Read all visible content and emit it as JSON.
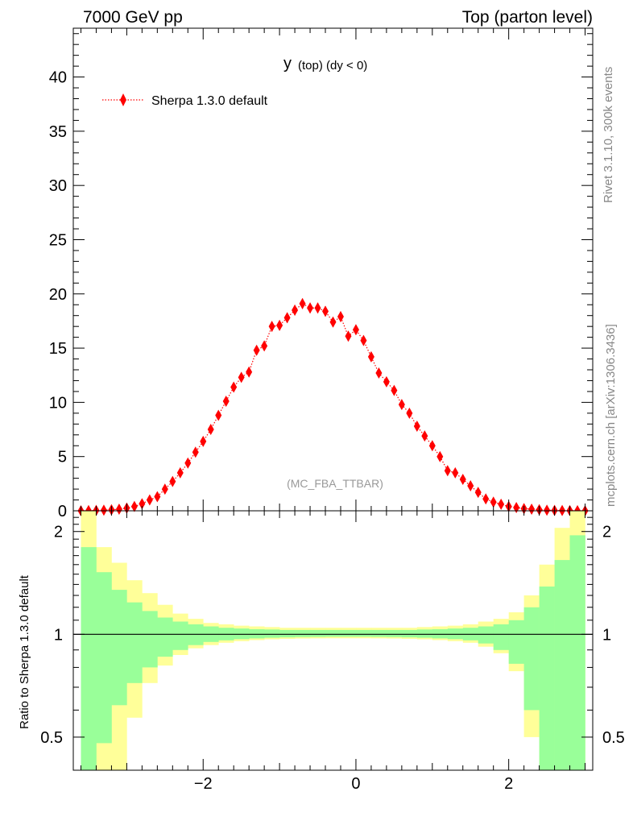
{
  "header": {
    "left": "7000 GeV pp",
    "right": "Top (parton level)"
  },
  "side": {
    "rivet": "Rivet 3.1.10,  300k events",
    "site": "mcplots.cern.ch [arXiv:1306.3436]"
  },
  "chart_data": [
    {
      "type": "line",
      "title": "y (top) (dy < 0)",
      "title_main": "y",
      "title_sub": "(top) (dy < 0)",
      "watermark": "(MC_FBA_TTBAR)",
      "xlim": [
        -3.7,
        3.1
      ],
      "ylim": [
        0,
        44.5
      ],
      "x_ticks": [
        -2,
        0,
        2
      ],
      "y_ticks": [
        0,
        5,
        10,
        15,
        20,
        25,
        30,
        35,
        40
      ],
      "x_tick_labels": [
        "−2",
        "0",
        "2"
      ],
      "y_tick_labels": [
        "0",
        "5",
        "10",
        "15",
        "20",
        "25",
        "30",
        "35",
        "40"
      ],
      "legend_placement": "top-left",
      "series": [
        {
          "name": "Sherpa 1.3.0 default",
          "color": "#ff0000",
          "marker": "diamond",
          "x": [
            -3.6,
            -3.5,
            -3.4,
            -3.3,
            -3.2,
            -3.1,
            -3.0,
            -2.9,
            -2.8,
            -2.7,
            -2.6,
            -2.5,
            -2.4,
            -2.3,
            -2.2,
            -2.1,
            -2.0,
            -1.9,
            -1.8,
            -1.7,
            -1.6,
            -1.5,
            -1.4,
            -1.3,
            -1.2,
            -1.1,
            -1.0,
            -0.9,
            -0.8,
            -0.7,
            -0.6,
            -0.5,
            -0.4,
            -0.3,
            -0.2,
            -0.1,
            0.0,
            0.1,
            0.2,
            0.3,
            0.4,
            0.5,
            0.6,
            0.7,
            0.8,
            0.9,
            1.0,
            1.1,
            1.2,
            1.3,
            1.4,
            1.5,
            1.6,
            1.7,
            1.8,
            1.9,
            2.0,
            2.1,
            2.2,
            2.3,
            2.4,
            2.5,
            2.6,
            2.7,
            2.8,
            2.9,
            3.0
          ],
          "y": [
            0.0,
            0.02,
            0.04,
            0.06,
            0.09,
            0.15,
            0.25,
            0.4,
            0.65,
            1.0,
            1.3,
            2.0,
            2.7,
            3.5,
            4.4,
            5.4,
            6.4,
            7.5,
            8.8,
            10.1,
            11.4,
            12.3,
            12.8,
            14.8,
            15.2,
            17.0,
            17.1,
            17.8,
            18.5,
            19.1,
            18.7,
            18.7,
            18.4,
            17.4,
            17.9,
            16.1,
            16.7,
            15.7,
            14.2,
            12.7,
            11.9,
            11.1,
            9.8,
            9.0,
            7.8,
            6.9,
            6.0,
            5.0,
            3.7,
            3.5,
            2.9,
            2.3,
            1.7,
            1.1,
            0.8,
            0.6,
            0.4,
            0.3,
            0.2,
            0.15,
            0.1,
            0.06,
            0.04,
            0.03,
            0.02,
            0.01,
            0.0
          ],
          "yerr": [
            0.05,
            0.05,
            0.05,
            0.05,
            0.05,
            0.06,
            0.08,
            0.1,
            0.12,
            0.15,
            0.18,
            0.2,
            0.22,
            0.25,
            0.27,
            0.29,
            0.31,
            0.33,
            0.35,
            0.37,
            0.39,
            0.4,
            0.41,
            0.43,
            0.44,
            0.46,
            0.46,
            0.47,
            0.48,
            0.48,
            0.48,
            0.48,
            0.47,
            0.46,
            0.47,
            0.45,
            0.46,
            0.44,
            0.42,
            0.4,
            0.39,
            0.37,
            0.35,
            0.34,
            0.31,
            0.29,
            0.27,
            0.25,
            0.22,
            0.21,
            0.19,
            0.17,
            0.15,
            0.12,
            0.1,
            0.09,
            0.08,
            0.07,
            0.06,
            0.05,
            0.05,
            0.05,
            0.05,
            0.05,
            0.05,
            0.05,
            0.05
          ]
        }
      ]
    },
    {
      "type": "area",
      "ylabel": "Ratio to Sherpa 1.3.0 default",
      "xlim": [
        -3.7,
        3.1
      ],
      "ylim": [
        0.4,
        2.3
      ],
      "y_scale": "log",
      "x_ticks": [
        -2,
        0,
        2
      ],
      "x_tick_labels": [
        "−2",
        "0",
        "2"
      ],
      "y_ticks": [
        0.5,
        1,
        2
      ],
      "y_tick_labels": [
        "0.5",
        "1",
        "2"
      ],
      "reference_line": 1,
      "bin_edges": [
        -3.6,
        -3.4,
        -3.2,
        -3.0,
        -2.8,
        -2.6,
        -2.4,
        -2.2,
        -2.0,
        -1.8,
        -1.6,
        -1.4,
        -1.2,
        -1.0,
        -0.8,
        -0.6,
        -0.4,
        -0.2,
        0.0,
        0.2,
        0.4,
        0.6,
        0.8,
        1.0,
        1.2,
        1.4,
        1.6,
        1.8,
        2.0,
        2.2,
        2.4,
        2.6,
        2.8,
        3.0
      ],
      "series": [
        {
          "name": "",
          "color": "#ffff99",
          "up": [
            2.4,
            1.8,
            1.62,
            1.44,
            1.32,
            1.22,
            1.15,
            1.11,
            1.08,
            1.07,
            1.06,
            1.055,
            1.05,
            1.045,
            1.045,
            1.045,
            1.045,
            1.045,
            1.045,
            1.045,
            1.045,
            1.045,
            1.05,
            1.055,
            1.06,
            1.07,
            1.09,
            1.11,
            1.16,
            1.3,
            1.6,
            2.05,
            2.35
          ],
          "down": [
            0.3,
            0.3,
            0.39,
            0.57,
            0.72,
            0.81,
            0.87,
            0.91,
            0.93,
            0.945,
            0.955,
            0.962,
            0.967,
            0.97,
            0.972,
            0.973,
            0.974,
            0.974,
            0.974,
            0.973,
            0.972,
            0.97,
            0.967,
            0.962,
            0.955,
            0.945,
            0.92,
            0.88,
            0.78,
            0.5,
            0.3,
            0.3,
            0.3
          ]
        },
        {
          "name": "",
          "color": "#99ff99",
          "up": [
            1.8,
            1.52,
            1.35,
            1.24,
            1.17,
            1.12,
            1.09,
            1.07,
            1.055,
            1.045,
            1.04,
            1.035,
            1.033,
            1.03,
            1.03,
            1.03,
            1.03,
            1.03,
            1.03,
            1.03,
            1.03,
            1.03,
            1.033,
            1.035,
            1.04,
            1.045,
            1.055,
            1.07,
            1.1,
            1.2,
            1.38,
            1.65,
            1.95
          ],
          "down": [
            0.3,
            0.48,
            0.62,
            0.72,
            0.8,
            0.86,
            0.9,
            0.93,
            0.95,
            0.96,
            0.968,
            0.973,
            0.977,
            0.98,
            0.982,
            0.983,
            0.984,
            0.984,
            0.984,
            0.983,
            0.982,
            0.98,
            0.977,
            0.973,
            0.968,
            0.96,
            0.94,
            0.9,
            0.82,
            0.6,
            0.3,
            0.3,
            0.3
          ]
        }
      ]
    }
  ]
}
